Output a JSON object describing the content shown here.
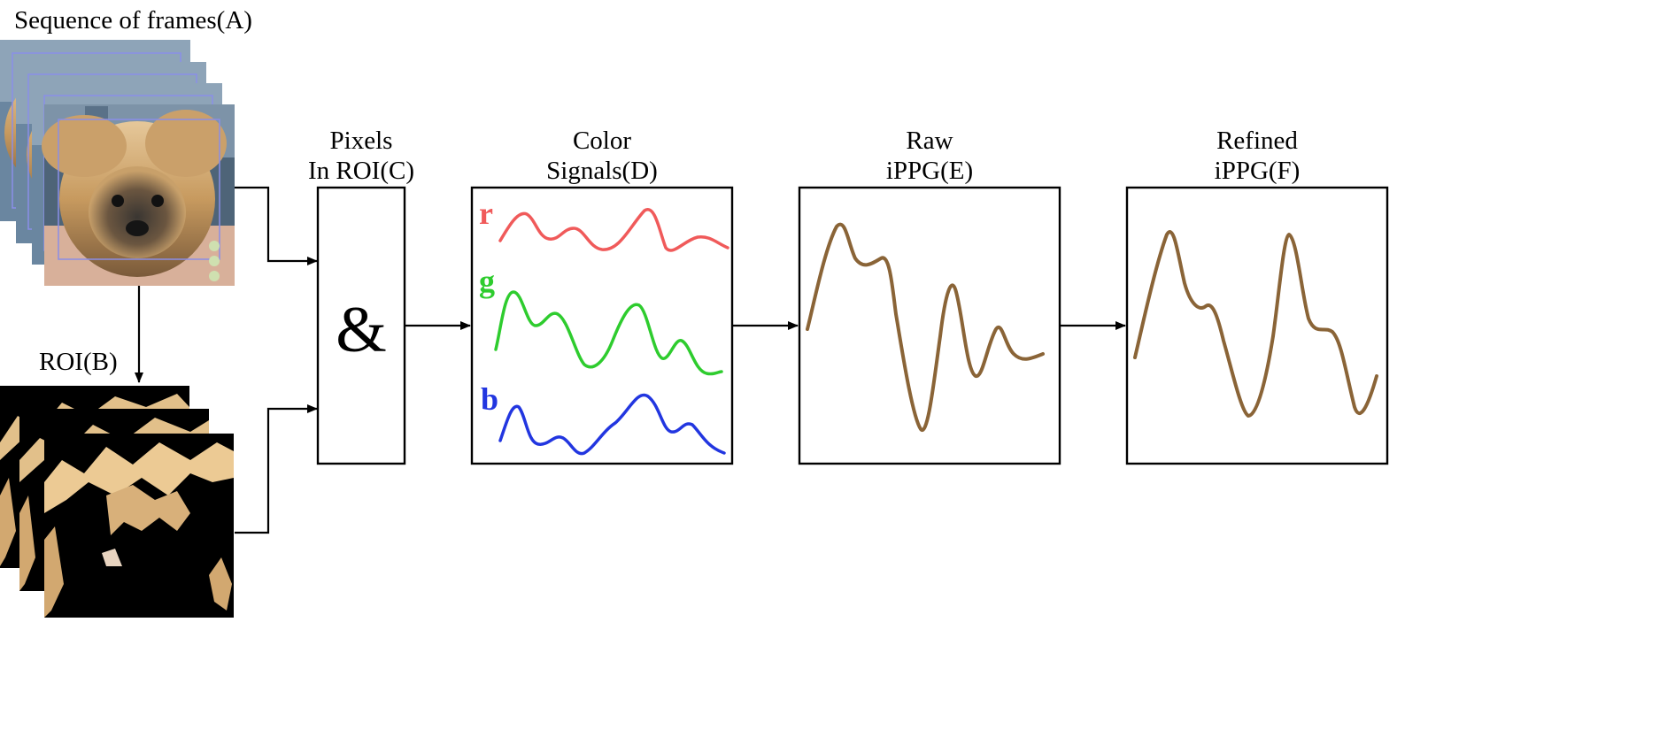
{
  "diagram": {
    "labels": {
      "sequence": "Sequence of frames(A)",
      "roi": "ROI(B)",
      "pixels_line1": "Pixels",
      "pixels_line2": "In ROI(C)",
      "color_line1": "Color",
      "color_line2": "Signals(D)",
      "raw_line1": "Raw",
      "raw_line2": "iPPG(E)",
      "refined_line1": "Refined",
      "refined_line2": "iPPG(F)"
    },
    "symbols": {
      "ampersand": "&",
      "r": "r",
      "g": "g",
      "b": "b"
    },
    "colors": {
      "r_signal": "#f05a5a",
      "g_signal": "#2ecc2e",
      "b_signal": "#2236e0",
      "ippg": "#8a6437",
      "roi_box": "#8a8ee8"
    }
  }
}
